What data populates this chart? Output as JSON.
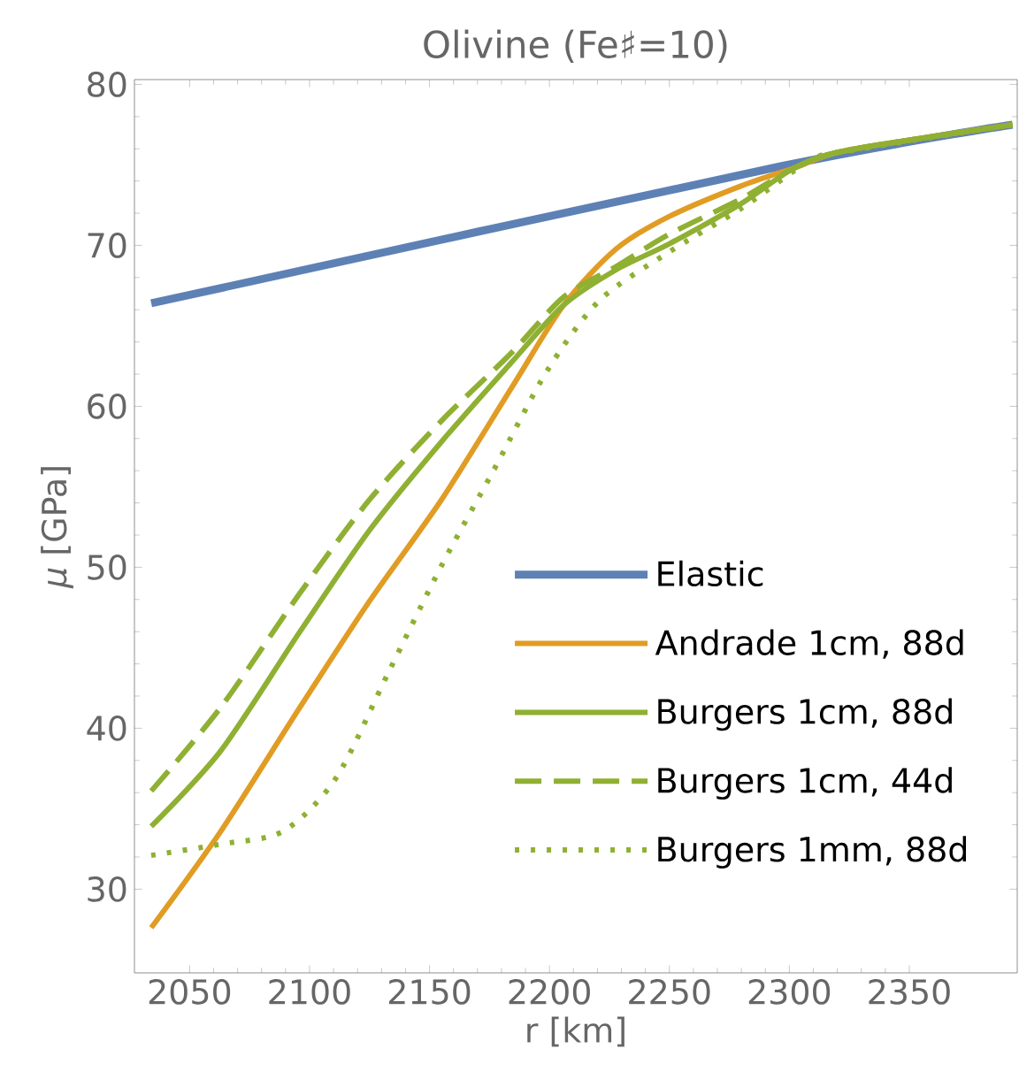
{
  "chart_data": {
    "type": "line",
    "title": "Olivine (Fe♯=10)",
    "xlabel": "r [km]",
    "ylabel": "*μ* [GPa]",
    "xlim": [
      2027,
      2395
    ],
    "ylim": [
      24.8,
      80.3
    ],
    "xticks": [
      2050,
      2100,
      2150,
      2200,
      2250,
      2300,
      2350
    ],
    "yticks": [
      30,
      40,
      50,
      60,
      70,
      80
    ],
    "grid": false,
    "legend": "bottom right",
    "marker": "none",
    "series": [
      {
        "name": "Elastic",
        "color": "#5e81b5",
        "line_style": "solid",
        "x": [
          2034,
          2296,
          2393
        ],
        "values": [
          66.4,
          74.9,
          77.5
        ]
      },
      {
        "name": "Andrade 1cm, 88d",
        "color": "#e19c24",
        "line_style": "solid",
        "x": [
          2034,
          2063,
          2096,
          2125,
          2155,
          2184,
          2206,
          2228,
          2250,
          2280,
          2302,
          2324,
          2393
        ],
        "values": [
          27.6,
          33.6,
          41.3,
          47.9,
          54.2,
          61.1,
          66.3,
          69.8,
          71.8,
          73.7,
          74.8,
          75.9,
          77.5
        ]
      },
      {
        "name": "Burgers 1cm, 88d",
        "color": "#8fb032",
        "line_style": "solid",
        "x": [
          2034,
          2063,
          2096,
          2125,
          2155,
          2184,
          2206,
          2228,
          2250,
          2280,
          2302,
          2324,
          2393
        ],
        "values": [
          33.9,
          38.6,
          46.0,
          52.3,
          57.8,
          62.7,
          66.3,
          68.5,
          70.1,
          72.6,
          74.8,
          75.9,
          77.5
        ]
      },
      {
        "name": "Burgers 1cm, 44d",
        "color": "#8fb032",
        "line_style": "dashed",
        "x": [
          2034,
          2063,
          2096,
          2125,
          2155,
          2184,
          2206,
          2228,
          2250,
          2280,
          2302,
          2324,
          2393
        ],
        "values": [
          36.1,
          41.3,
          48.4,
          54.2,
          59.1,
          63.3,
          66.8,
          68.7,
          70.7,
          72.9,
          74.8,
          75.9,
          77.5
        ]
      },
      {
        "name": "Burgers 1mm, 88d",
        "color": "#8fb032",
        "line_style": "dotted",
        "x": [
          2034,
          2063,
          2089,
          2111,
          2133,
          2155,
          2177,
          2199,
          2221,
          2250,
          2280,
          2309,
          2326,
          2393
        ],
        "values": [
          32.1,
          32.8,
          33.6,
          36.9,
          43.5,
          50.1,
          56.1,
          62.2,
          66.6,
          69.6,
          72.3,
          75.3,
          75.9,
          77.5
        ]
      }
    ]
  }
}
